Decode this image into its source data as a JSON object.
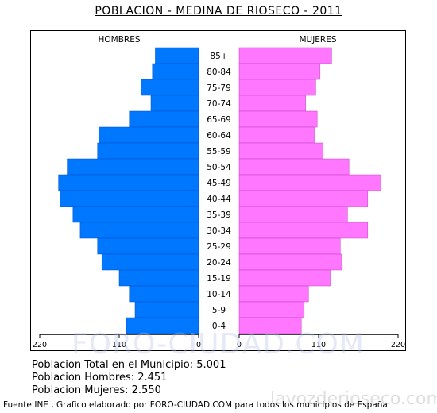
{
  "title": "POBLACION - MEDINA DE RIOSECO - 2011",
  "watermark": "FORO-CIUDAD.COM",
  "watermark2": "lavozderioseco.com",
  "chart_data": {
    "type": "bar",
    "orientation": "horizontal-population-pyramid",
    "left_header": "HOMBRES",
    "right_header": "MUJERES",
    "categories": [
      "85+",
      "80-84",
      "75-79",
      "70-74",
      "65-69",
      "60-64",
      "55-59",
      "50-54",
      "45-49",
      "40-44",
      "35-39",
      "30-34",
      "25-29",
      "20-24",
      "15-19",
      "10-14",
      "5-9",
      "0-4"
    ],
    "series": [
      {
        "name": "HOMBRES",
        "color": "#0077ff",
        "values": [
          60,
          64,
          80,
          66,
          96,
          138,
          140,
          182,
          194,
          192,
          174,
          164,
          140,
          134,
          110,
          96,
          88,
          100
        ]
      },
      {
        "name": "MUJERES",
        "color": "#ff77ff",
        "values": [
          128,
          112,
          106,
          92,
          108,
          104,
          116,
          152,
          196,
          178,
          150,
          178,
          140,
          142,
          126,
          96,
          90,
          86
        ]
      }
    ],
    "left_ticks": [
      "220",
      "110",
      "0"
    ],
    "right_ticks": [
      "0",
      "110",
      "220"
    ],
    "xlim": [
      0,
      220
    ]
  },
  "stats": {
    "total": "Poblacion Total en el Municipio: 5.001",
    "hombres": "Poblacion Hombres: 2.451",
    "mujeres": "Poblacion Mujeres: 2.550"
  },
  "source": "Fuente:INE , Grafico elaborado por FORO-CIUDAD.COM para todos los municipios  de España"
}
